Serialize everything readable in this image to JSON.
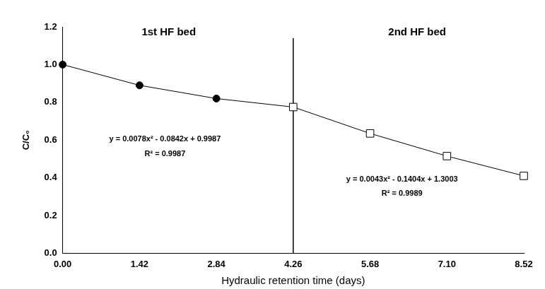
{
  "chart_data": {
    "type": "line",
    "x_label": "Hydraulic retention time (days)",
    "y_label": "C/C₀",
    "xlim": [
      0,
      8.52
    ],
    "xticks": [
      {
        "value": 0,
        "label": "0.00"
      },
      {
        "value": 1.42,
        "label": "1.42"
      },
      {
        "value": 2.84,
        "label": "2.84"
      },
      {
        "value": 4.26,
        "label": "4.26"
      },
      {
        "value": 5.68,
        "label": "5.68"
      },
      {
        "value": 7.1,
        "label": "7.10"
      },
      {
        "value": 8.52,
        "label": "8.52"
      }
    ],
    "ylim": [
      0,
      1.2
    ],
    "yticks": [
      {
        "value": 0,
        "label": "0.0"
      },
      {
        "value": 0.2,
        "label": "0.2"
      },
      {
        "value": 0.4,
        "label": "0.4"
      },
      {
        "value": 0.6,
        "label": "0.6"
      },
      {
        "value": 0.8,
        "label": "0.8"
      },
      {
        "value": 1.0,
        "label": "1.0"
      },
      {
        "value": 1.2,
        "label": "1.2"
      }
    ],
    "grid": false,
    "series": [
      {
        "color": "#000000",
        "marker": "circle",
        "line_style": "solid",
        "x": [
          0,
          1.42,
          2.84,
          4.26
        ],
        "values": [
          1.0,
          0.89,
          0.82,
          0.775
        ]
      },
      {
        "color": "#000000",
        "marker": "square",
        "line_style": "solid",
        "x": [
          4.26,
          5.68,
          7.1,
          8.52
        ],
        "values": [
          0.775,
          0.635,
          0.515,
          0.41
        ]
      }
    ],
    "divider_x": 4.26,
    "annotations": [
      "1st HF bed",
      "2nd HF bed",
      "y = 0.0078x² - 0.0842x + 0.9987",
      "R² = 0.9987",
      "y = 0.0043x² - 0.1404x + 1.3003",
      "R² = 0.9989"
    ]
  }
}
